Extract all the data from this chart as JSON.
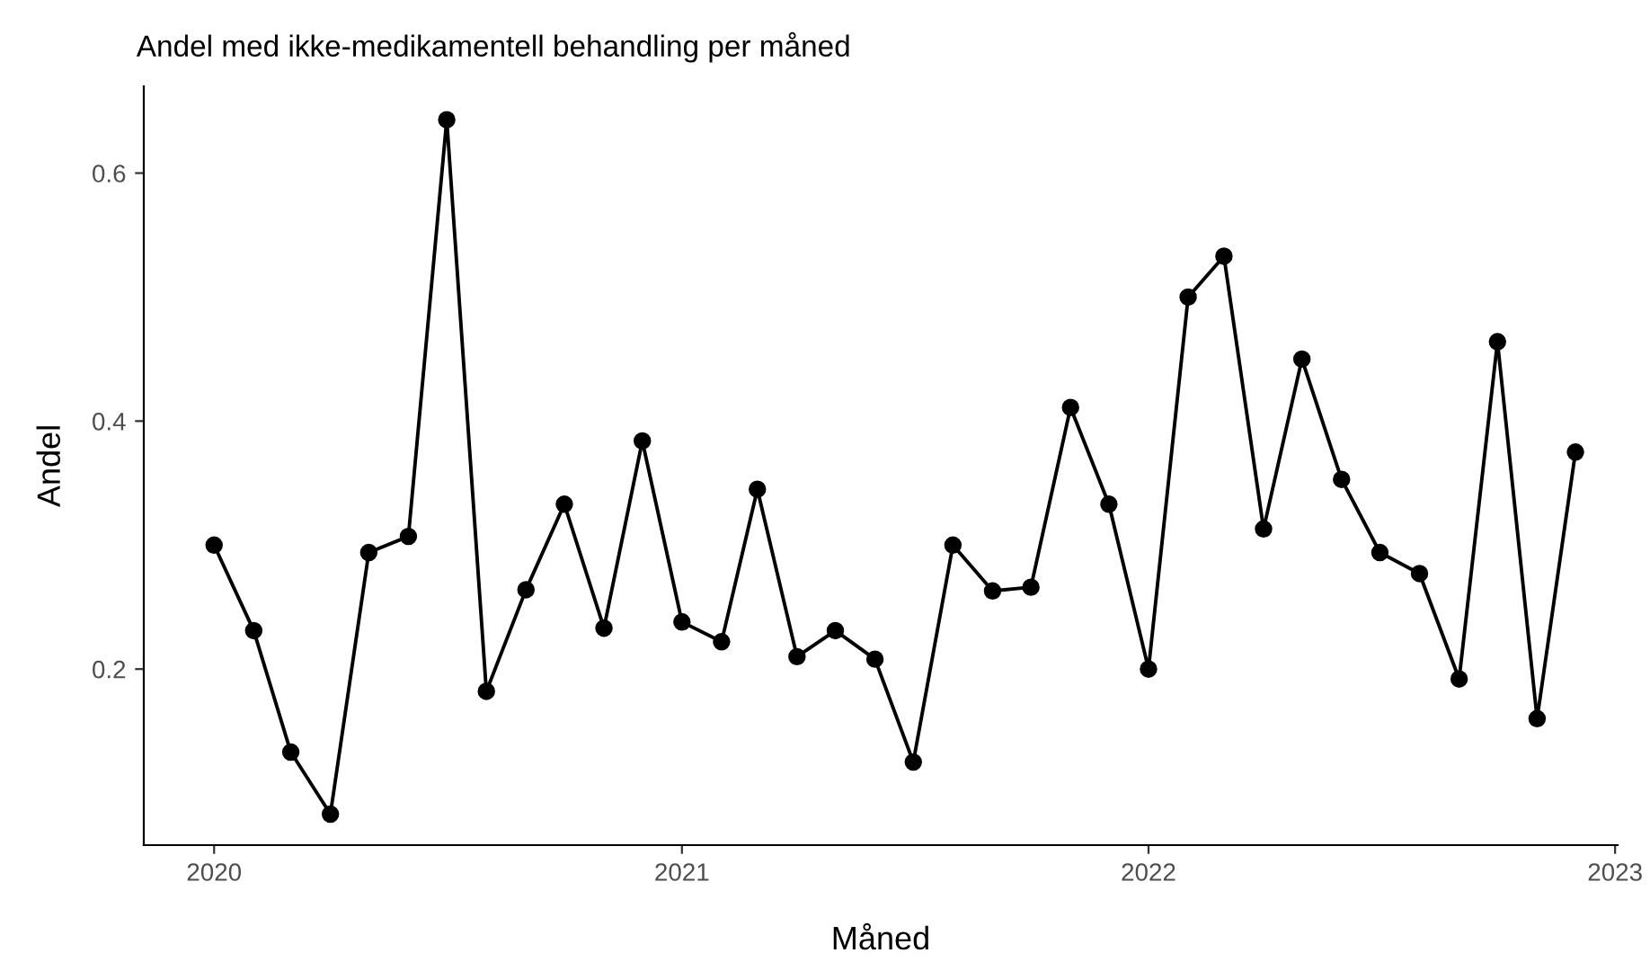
{
  "chart_data": {
    "type": "line",
    "title": "Andel med ikke-medikamentell behandling per måned",
    "xlabel": "Måned",
    "ylabel": "Andel",
    "x": [
      "2020-01-01",
      "2020-02-01",
      "2020-03-01",
      "2020-04-01",
      "2020-05-01",
      "2020-06-01",
      "2020-07-01",
      "2020-08-01",
      "2020-09-01",
      "2020-10-01",
      "2020-11-01",
      "2020-12-01",
      "2021-01-01",
      "2021-02-01",
      "2021-03-01",
      "2021-04-01",
      "2021-05-01",
      "2021-06-01",
      "2021-07-01",
      "2021-08-01",
      "2021-09-01",
      "2021-10-01",
      "2021-11-01",
      "2021-12-01",
      "2022-01-01",
      "2022-02-01",
      "2022-03-01",
      "2022-04-01",
      "2022-05-01",
      "2022-06-01",
      "2022-07-01",
      "2022-08-01",
      "2022-09-01",
      "2022-10-01",
      "2022-11-01",
      "2022-12-01"
    ],
    "series": [
      {
        "color": "#000000",
        "values": [
          0.3,
          0.231,
          0.133,
          0.083,
          0.294,
          0.307,
          0.643,
          0.182,
          0.264,
          0.333,
          0.233,
          0.384,
          0.238,
          0.222,
          0.345,
          0.21,
          0.231,
          0.208,
          0.125,
          0.3,
          0.263,
          0.266,
          0.411,
          0.333,
          0.2,
          0.5,
          0.533,
          0.313,
          0.45,
          0.353,
          0.294,
          0.277,
          0.192,
          0.464,
          0.16,
          0.375
        ]
      }
    ],
    "xlim": [
      "2019-11-07",
      "2023-01-03"
    ],
    "xticks": [
      {
        "value": "2020-01-01",
        "label": "2020"
      },
      {
        "value": "2021-01-01",
        "label": "2021"
      },
      {
        "value": "2022-01-01",
        "label": "2022"
      },
      {
        "value": "2023-01-01",
        "label": "2023"
      }
    ],
    "ylim": [
      0.058,
      0.67
    ],
    "yticks": [
      0.2,
      0.4,
      0.6
    ],
    "grid": false,
    "marker": "circle",
    "line_style": "solid"
  }
}
